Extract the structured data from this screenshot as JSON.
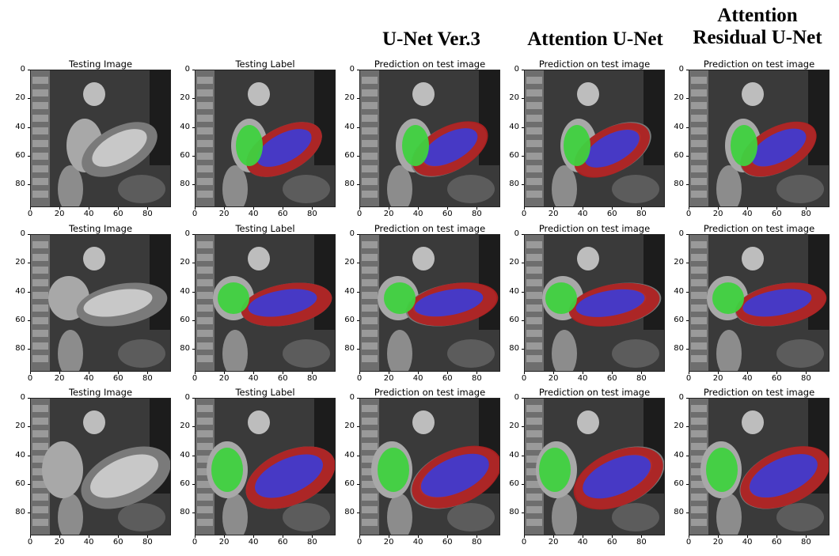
{
  "column_headers": [
    "U-Net Ver.3",
    "Attention U-Net",
    "Attention\nResidual U-Net"
  ],
  "panel_titles": {
    "image": "Testing Image",
    "label": "Testing Label",
    "prediction": "Prediction on test image"
  },
  "x_ticks": [
    "0",
    "20",
    "40",
    "60",
    "80"
  ],
  "y_ticks": [
    "0",
    "20",
    "40",
    "60",
    "80"
  ],
  "colors": {
    "left_atrium_green": "#3fd13f",
    "myocardium_red": "#b01e1e",
    "ventricle_blue": "#3b3bd6"
  },
  "rows": 3,
  "columns": [
    "Testing Image",
    "Testing Label",
    "Prediction on test image",
    "Prediction on test image",
    "Prediction on test image"
  ]
}
